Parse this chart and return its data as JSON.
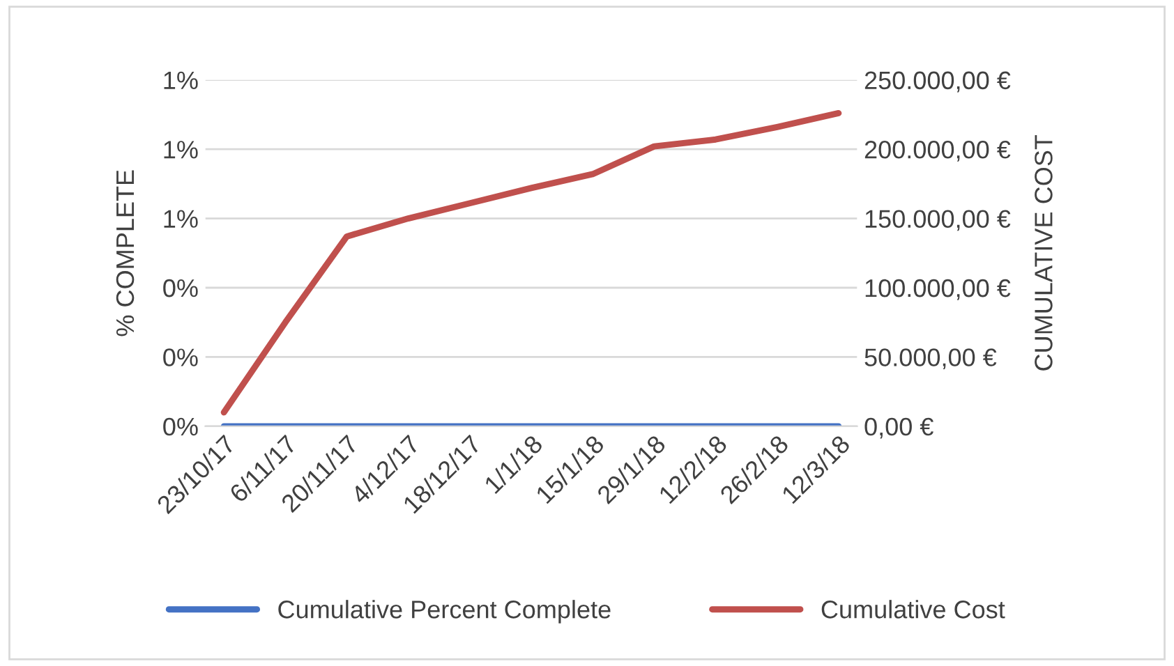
{
  "chart_data": {
    "type": "line",
    "ylabel": "% COMPLETE",
    "y2label": "CUMULATIVE COST",
    "categories": [
      "23/10/17",
      "6/11/17",
      "20/11/17",
      "4/12/17",
      "18/12/17",
      "1/1/18",
      "15/1/18",
      "29/1/18",
      "12/2/18",
      "26/2/18",
      "12/3/18"
    ],
    "series": [
      {
        "name": "Cumulative Percent Complete",
        "color": "#4472c4",
        "values": [
          0,
          0,
          0,
          0,
          0,
          0,
          0,
          0,
          0,
          0,
          0
        ]
      },
      {
        "name": "Cumulative Cost",
        "color": "#c0504d",
        "axis": "y2",
        "values": [
          10000,
          75000,
          137000,
          150000,
          161000,
          172000,
          182000,
          202000,
          207000,
          216000,
          226000
        ]
      }
    ],
    "ylim": [
      0,
      1.0
    ],
    "yticks": [
      {
        "value": 0,
        "label": "0%"
      },
      {
        "value": 0.2,
        "label": "0%"
      },
      {
        "value": 0.4,
        "label": "0%"
      },
      {
        "value": 0.6,
        "label": "1%"
      },
      {
        "value": 0.8,
        "label": "1%"
      },
      {
        "value": 1.0,
        "label": "1%"
      }
    ],
    "y2lim": [
      0,
      250000
    ],
    "y2ticks": [
      {
        "value": 0,
        "label": "0,00 €"
      },
      {
        "value": 50000,
        "label": "50.000,00 €"
      },
      {
        "value": 100000,
        "label": "100.000,00 €"
      },
      {
        "value": 150000,
        "label": "150.000,00 €"
      },
      {
        "value": 200000,
        "label": "200.000,00 €"
      },
      {
        "value": 250000,
        "label": "250.000,00 €"
      }
    ],
    "grid": "y",
    "legend": "bottom",
    "line_style": "solid",
    "marker": "none"
  }
}
